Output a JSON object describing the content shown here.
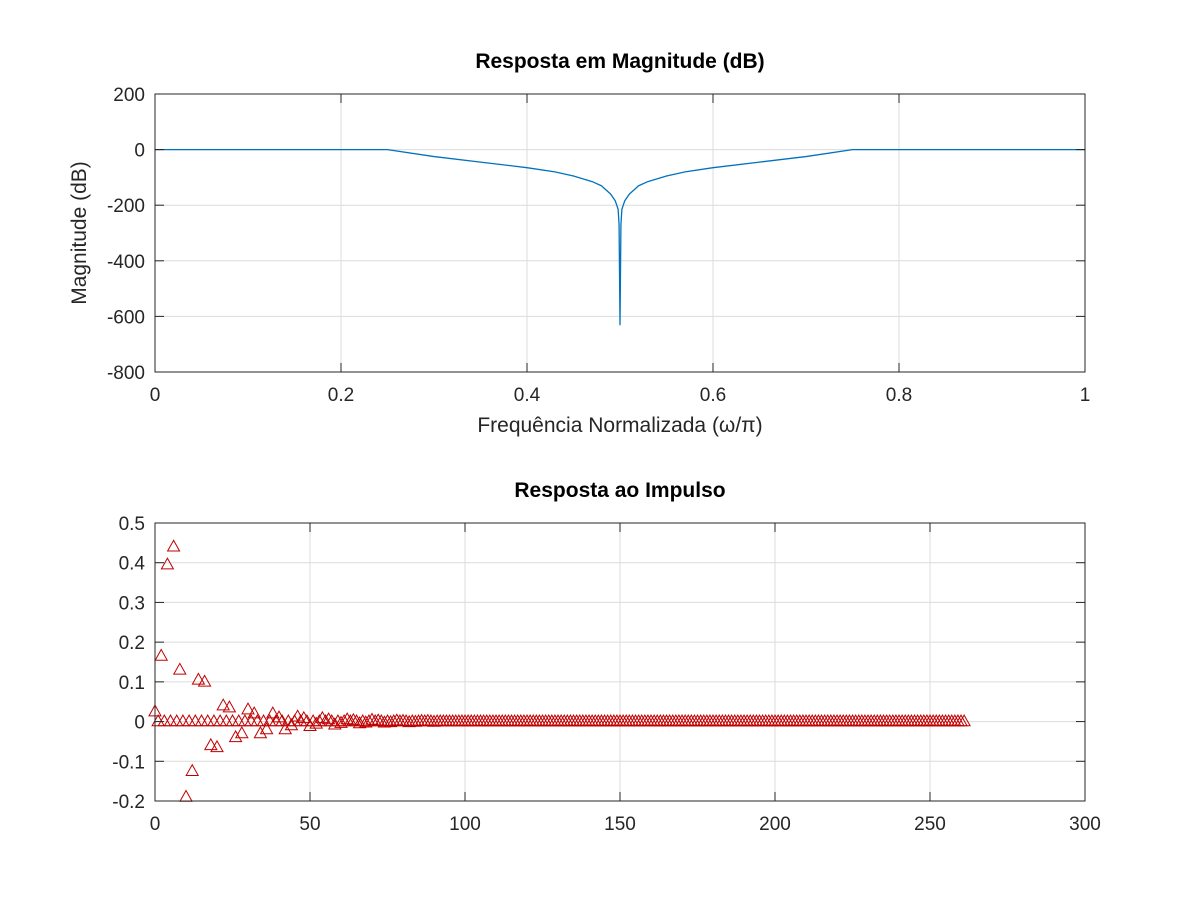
{
  "chart_data": [
    {
      "type": "line",
      "title": "Resposta em Magnitude (dB)",
      "xlabel": "Frequência Normalizada (ω/π)",
      "ylabel": "Magnitude (dB)",
      "xlim": [
        0,
        1
      ],
      "ylim": [
        -800,
        200
      ],
      "xticks": [
        0,
        0.2,
        0.4,
        0.6,
        0.8,
        1
      ],
      "xtick_labels": [
        "0",
        "0.2",
        "0.4",
        "0.6",
        "0.8",
        "1"
      ],
      "yticks": [
        -800,
        -600,
        -400,
        -200,
        0,
        200
      ],
      "ytick_labels": [
        "-800",
        "-600",
        "-400",
        "-200",
        "0",
        "200"
      ],
      "grid": true,
      "legend": "none",
      "series": [
        {
          "color": "#0072bd",
          "x": [
            0,
            0.1,
            0.2,
            0.25,
            0.3,
            0.35,
            0.4,
            0.43,
            0.45,
            0.47,
            0.48,
            0.49,
            0.495,
            0.498,
            0.499,
            0.5,
            0.501,
            0.502,
            0.505,
            0.51,
            0.52,
            0.53,
            0.55,
            0.57,
            0.6,
            0.65,
            0.7,
            0.75,
            0.8,
            0.9,
            1
          ],
          "y": [
            0,
            0,
            0,
            0,
            -25,
            -45,
            -65,
            -80,
            -95,
            -115,
            -130,
            -160,
            -185,
            -215,
            -270,
            -630,
            -270,
            -215,
            -185,
            -160,
            -130,
            -115,
            -95,
            -80,
            -65,
            -45,
            -25,
            0,
            0,
            0,
            0
          ]
        }
      ]
    },
    {
      "type": "scatter",
      "title": "Resposta ao Impulso",
      "xlabel": "",
      "ylabel": "",
      "xlim": [
        0,
        300
      ],
      "ylim": [
        -0.2,
        0.5
      ],
      "xticks": [
        0,
        50,
        100,
        150,
        200,
        250,
        300
      ],
      "xtick_labels": [
        "0",
        "50",
        "100",
        "150",
        "200",
        "250",
        "300"
      ],
      "yticks": [
        -0.2,
        -0.1,
        0,
        0.1,
        0.2,
        0.3,
        0.4,
        0.5
      ],
      "ytick_labels": [
        "-0.2",
        "-0.1",
        "0",
        "0.1",
        "0.2",
        "0.3",
        "0.4",
        "0.5"
      ],
      "grid": true,
      "legend": "none",
      "marker": "triangle",
      "series": [
        {
          "color": "#c00000",
          "x": [
            0,
            2,
            4,
            6,
            8,
            10,
            12,
            14,
            16,
            18,
            20,
            22,
            24,
            26,
            28,
            30,
            32,
            34,
            36,
            38,
            40,
            42,
            44,
            46,
            48,
            50,
            52,
            54,
            56,
            58,
            60,
            62,
            64,
            66,
            68,
            70,
            72,
            74,
            76,
            78,
            80,
            82,
            84,
            86,
            88,
            90,
            92,
            94,
            96,
            98,
            100,
            102,
            104,
            106,
            108,
            110,
            112,
            114,
            116,
            118,
            120,
            122,
            124,
            126,
            128,
            130,
            132,
            134,
            136,
            138,
            140,
            142,
            144,
            146,
            148,
            150,
            152,
            154,
            156,
            158,
            160,
            162,
            164,
            166,
            168,
            170,
            172,
            174,
            176,
            178,
            180,
            182,
            184,
            186,
            188,
            190,
            192,
            194,
            196,
            198,
            200,
            202,
            204,
            206,
            208,
            210,
            212,
            214,
            216,
            218,
            220,
            222,
            224,
            226,
            228,
            230,
            232,
            234,
            236,
            238,
            240,
            242,
            244,
            246,
            248,
            250,
            252,
            254,
            256,
            258,
            260
          ],
          "y": [
            0.025,
            0.165,
            0.395,
            0.44,
            0.13,
            -0.19,
            -0.125,
            0.105,
            0.1,
            -0.06,
            -0.065,
            0.04,
            0.035,
            -0.04,
            -0.03,
            0.03,
            0.02,
            -0.03,
            -0.02,
            0.02,
            0.01,
            -0.02,
            -0.01,
            0.012,
            0.008,
            -0.012,
            -0.006,
            0.008,
            0.005,
            -0.008,
            -0.004,
            0.005,
            0.003,
            -0.005,
            -0.003,
            0.004,
            0.002,
            -0.003,
            -0.002,
            0.002,
            0.001,
            -0.002,
            -0.001,
            0.001,
            0.001,
            -0.001,
            0,
            0,
            0,
            0,
            0,
            0,
            0,
            0,
            0,
            0,
            0,
            0,
            0,
            0,
            0,
            0,
            0,
            0,
            0,
            0,
            0,
            0,
            0,
            0,
            0,
            0,
            0,
            0,
            0,
            0,
            0,
            0,
            0,
            0,
            0,
            0,
            0,
            0,
            0,
            0,
            0,
            0,
            0,
            0,
            0,
            0,
            0,
            0,
            0,
            0,
            0,
            0,
            0,
            0,
            0,
            0,
            0,
            0,
            0,
            0,
            0,
            0,
            0,
            0,
            0,
            0,
            0,
            0,
            0,
            0,
            0,
            0,
            0,
            0,
            0,
            0,
            0,
            0,
            0,
            0,
            0,
            0,
            0,
            0,
            0
          ]
        },
        {
          "color": "#c00000",
          "x": [
            1,
            3,
            5,
            7,
            9,
            11,
            13,
            15,
            17,
            19,
            21,
            23,
            25,
            27,
            29,
            31,
            33,
            35,
            37,
            39,
            41,
            43,
            45,
            47,
            49,
            51,
            53,
            55,
            57,
            59,
            61,
            63,
            65,
            67,
            69,
            71,
            73,
            75,
            77,
            79,
            81,
            83,
            85,
            87,
            89,
            91,
            93,
            95,
            97,
            99,
            101,
            103,
            105,
            107,
            109,
            111,
            113,
            115,
            117,
            119,
            121,
            123,
            125,
            127,
            129,
            131,
            133,
            135,
            137,
            139,
            141,
            143,
            145,
            147,
            149,
            151,
            153,
            155,
            157,
            159,
            161,
            163,
            165,
            167,
            169,
            171,
            173,
            175,
            177,
            179,
            181,
            183,
            185,
            187,
            189,
            191,
            193,
            195,
            197,
            199,
            201,
            203,
            205,
            207,
            209,
            211,
            213,
            215,
            217,
            219,
            221,
            223,
            225,
            227,
            229,
            231,
            233,
            235,
            237,
            239,
            241,
            243,
            245,
            247,
            249,
            251,
            253,
            255,
            257,
            259,
            261
          ],
          "y": [
            0,
            0,
            0,
            0,
            0,
            0,
            0,
            0,
            0,
            0,
            0,
            0,
            0,
            0,
            0,
            0,
            0,
            0,
            0,
            0,
            0,
            0,
            0,
            0,
            0,
            0,
            0,
            0,
            0,
            0,
            0,
            0,
            0,
            0,
            0,
            0,
            0,
            0,
            0,
            0,
            0,
            0,
            0,
            0,
            0,
            0,
            0,
            0,
            0,
            0,
            0,
            0,
            0,
            0,
            0,
            0,
            0,
            0,
            0,
            0,
            0,
            0,
            0,
            0,
            0,
            0,
            0,
            0,
            0,
            0,
            0,
            0,
            0,
            0,
            0,
            0,
            0,
            0,
            0,
            0,
            0,
            0,
            0,
            0,
            0,
            0,
            0,
            0,
            0,
            0,
            0,
            0,
            0,
            0,
            0,
            0,
            0,
            0,
            0,
            0,
            0,
            0,
            0,
            0,
            0,
            0,
            0,
            0,
            0,
            0,
            0,
            0,
            0,
            0,
            0,
            0,
            0,
            0,
            0,
            0,
            0,
            0,
            0,
            0,
            0,
            0,
            0,
            0,
            0,
            0,
            0
          ]
        }
      ]
    }
  ]
}
